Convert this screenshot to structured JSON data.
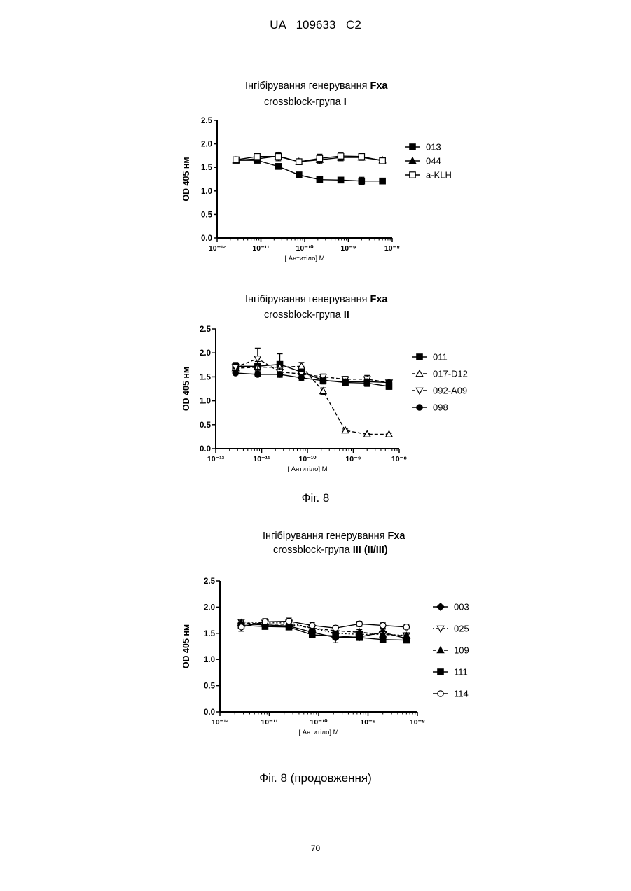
{
  "page": {
    "header": "UA 109633 C2",
    "fig_caption_1": "Фіг. 8",
    "fig_caption_2": "Фіг. 8 (продовження)",
    "page_number": "70"
  },
  "chart_data": [
    {
      "type": "line",
      "title_prefix": "Інгібірування генерування ",
      "title_bold": "Fxa",
      "subtitle_prefix": "crossblock-група ",
      "subtitle_bold": "I",
      "xlabel": "[ Антитіло] M",
      "ylabel": "OD 405 нм",
      "xscale": "log",
      "xlim": [
        1e-12,
        1e-08
      ],
      "ylim": [
        0,
        2.5
      ],
      "x_tick_labels": [
        "10⁻¹²",
        "10⁻¹¹",
        "10⁻¹⁰",
        "10⁻⁹",
        "10⁻⁸"
      ],
      "y_tick_labels": [
        "0.0",
        "0.5",
        "1.0",
        "1.5",
        "2.0",
        "2.5"
      ],
      "legend_position": "right",
      "x": [
        2.7e-12,
        8.2e-12,
        2.5e-11,
        7.4e-11,
        2.2e-10,
        6.7e-10,
        2e-09,
        6e-09
      ],
      "series": [
        {
          "name": "013",
          "marker": "square-filled",
          "dash": "solid",
          "values": [
            1.65,
            1.65,
            1.52,
            1.34,
            1.24,
            1.23,
            1.21,
            1.21
          ],
          "errors": [
            0.03,
            0.04,
            0.04,
            0.05,
            0.06,
            0.05,
            0.08,
            0.06
          ]
        },
        {
          "name": "044",
          "marker": "triangle-filled",
          "dash": "solid",
          "values": [
            1.65,
            1.68,
            1.74,
            1.62,
            1.66,
            1.71,
            1.71,
            1.65
          ],
          "errors": [
            0.03,
            0.05,
            0.08,
            0.04,
            0.08,
            0.07,
            0.06,
            0.04
          ]
        },
        {
          "name": "a-KLH",
          "marker": "square-open",
          "dash": "solid",
          "values": [
            1.66,
            1.73,
            1.73,
            1.62,
            1.69,
            1.74,
            1.73,
            1.64
          ],
          "errors": [
            0.03,
            0.05,
            0.09,
            0.04,
            0.09,
            0.08,
            0.07,
            0.04
          ]
        }
      ]
    },
    {
      "type": "line",
      "title_prefix": "Інгібірування генерування ",
      "title_bold": "Fxa",
      "subtitle_prefix": "crossblock-група ",
      "subtitle_bold": "II",
      "xlabel": "[ Антитіло] M",
      "ylabel": "OD 405 нм",
      "xscale": "log",
      "xlim": [
        1e-12,
        1e-08
      ],
      "ylim": [
        0,
        2.5
      ],
      "x_tick_labels": [
        "10⁻¹²",
        "10⁻¹¹",
        "10⁻¹⁰",
        "10⁻⁹",
        "10⁻⁸"
      ],
      "y_tick_labels": [
        "0.0",
        "0.5",
        "1.0",
        "1.5",
        "2.0",
        "2.5"
      ],
      "legend_position": "right",
      "x": [
        2.7e-12,
        8.2e-12,
        2.5e-11,
        7.4e-11,
        2.2e-10,
        6.7e-10,
        2e-09,
        6e-09
      ],
      "series": [
        {
          "name": "011",
          "marker": "square-filled",
          "dash": "solid",
          "values": [
            1.72,
            1.72,
            1.76,
            1.6,
            1.43,
            1.38,
            1.37,
            1.3
          ],
          "errors": [
            0.08,
            0.1,
            0.22,
            0.12,
            0.08,
            0.07,
            0.07,
            0.06
          ]
        },
        {
          "name": "017-D12",
          "marker": "triangle-open",
          "dash": "dashed",
          "values": [
            1.68,
            1.7,
            1.7,
            1.72,
            1.2,
            0.38,
            0.3,
            0.3
          ],
          "errors": [
            0.05,
            0.06,
            0.06,
            0.08,
            0.07,
            0.03,
            0.02,
            0.02
          ]
        },
        {
          "name": "092-A09",
          "marker": "triangle-down-open",
          "dash": "dashed",
          "values": [
            1.7,
            1.88,
            1.6,
            1.56,
            1.5,
            1.45,
            1.45,
            1.38
          ],
          "errors": [
            0.06,
            0.22,
            0.08,
            0.08,
            0.06,
            0.06,
            0.08,
            0.05
          ]
        },
        {
          "name": "098",
          "marker": "circle-filled",
          "dash": "solid",
          "values": [
            1.58,
            1.55,
            1.55,
            1.48,
            1.42,
            1.4,
            1.4,
            1.38
          ],
          "errors": [
            0.04,
            0.04,
            0.06,
            0.06,
            0.05,
            0.05,
            0.05,
            0.04
          ]
        }
      ]
    },
    {
      "type": "line",
      "title_prefix": "Інгібірування генерування ",
      "title_bold": "Fxa",
      "subtitle_prefix": "crossblock-група ",
      "subtitle_bold": "III (II/III)",
      "xlabel": "[ Антитіло] M",
      "ylabel": "OD 405 нм",
      "xscale": "log",
      "xlim": [
        1e-12,
        1e-08
      ],
      "ylim": [
        0,
        2.5
      ],
      "x_tick_labels": [
        "10⁻¹²",
        "10⁻¹¹",
        "10⁻¹⁰",
        "10⁻⁹",
        "10⁻⁸"
      ],
      "y_tick_labels": [
        "0.0",
        "0.5",
        "1.0",
        "1.5",
        "2.0",
        "2.5"
      ],
      "legend_position": "right",
      "x": [
        2.7e-12,
        8.2e-12,
        2.5e-11,
        7.4e-11,
        2.2e-10,
        6.7e-10,
        2e-09,
        6e-09
      ],
      "series": [
        {
          "name": "003",
          "marker": "diamond-filled",
          "dash": "solid",
          "values": [
            1.68,
            1.66,
            1.64,
            1.52,
            1.42,
            1.43,
            1.52,
            1.4
          ],
          "errors": [
            0.06,
            0.05,
            0.05,
            0.06,
            0.1,
            0.06,
            0.06,
            0.05
          ]
        },
        {
          "name": "025",
          "marker": "triangle-down-open",
          "dash": "dotted",
          "values": [
            1.72,
            1.7,
            1.7,
            1.6,
            1.5,
            1.48,
            1.48,
            1.46
          ],
          "errors": [
            0.05,
            0.05,
            0.06,
            0.06,
            0.06,
            0.05,
            0.05,
            0.05
          ]
        },
        {
          "name": "109",
          "marker": "triangle-filled",
          "dash": "dashed",
          "values": [
            1.7,
            1.68,
            1.67,
            1.6,
            1.55,
            1.52,
            1.48,
            1.45
          ],
          "errors": [
            0.05,
            0.05,
            0.05,
            0.05,
            0.05,
            0.05,
            0.05,
            0.05
          ]
        },
        {
          "name": "111",
          "marker": "square-filled",
          "dash": "solid",
          "values": [
            1.65,
            1.63,
            1.62,
            1.47,
            1.45,
            1.42,
            1.38,
            1.37
          ],
          "errors": [
            0.05,
            0.04,
            0.04,
            0.05,
            0.05,
            0.05,
            0.05,
            0.05
          ]
        },
        {
          "name": "114",
          "marker": "circle-open",
          "dash": "solid",
          "values": [
            1.62,
            1.72,
            1.73,
            1.65,
            1.6,
            1.68,
            1.65,
            1.62
          ],
          "errors": [
            0.08,
            0.06,
            0.06,
            0.06,
            0.05,
            0.05,
            0.05,
            0.04
          ]
        }
      ]
    }
  ]
}
